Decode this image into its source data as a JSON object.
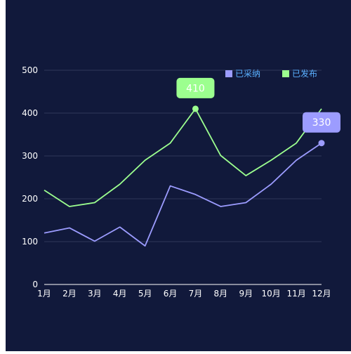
{
  "chart_data": {
    "type": "line",
    "categories": [
      "1月",
      "2月",
      "3月",
      "4月",
      "5月",
      "6月",
      "7月",
      "8月",
      "9月",
      "10月",
      "11月",
      "12月"
    ],
    "y_ticks": [
      "0",
      "100",
      "200",
      "300",
      "400",
      "500"
    ],
    "ylim": [
      0,
      500
    ],
    "grid": true,
    "legend_position": "top-right",
    "background": "#11193b",
    "series": [
      {
        "name": "已采纳",
        "color": "#9c9cff",
        "values": [
          120,
          132,
          101,
          134,
          90,
          230,
          210,
          182,
          191,
          234,
          290,
          330
        ],
        "label_value": "330",
        "label_index": 11
      },
      {
        "name": "已发布",
        "color": "#9cff8f",
        "values": [
          220,
          182,
          191,
          234,
          290,
          330,
          410,
          301,
          254,
          290,
          330,
          410
        ],
        "label_value": "410",
        "label_index": 6
      }
    ]
  }
}
